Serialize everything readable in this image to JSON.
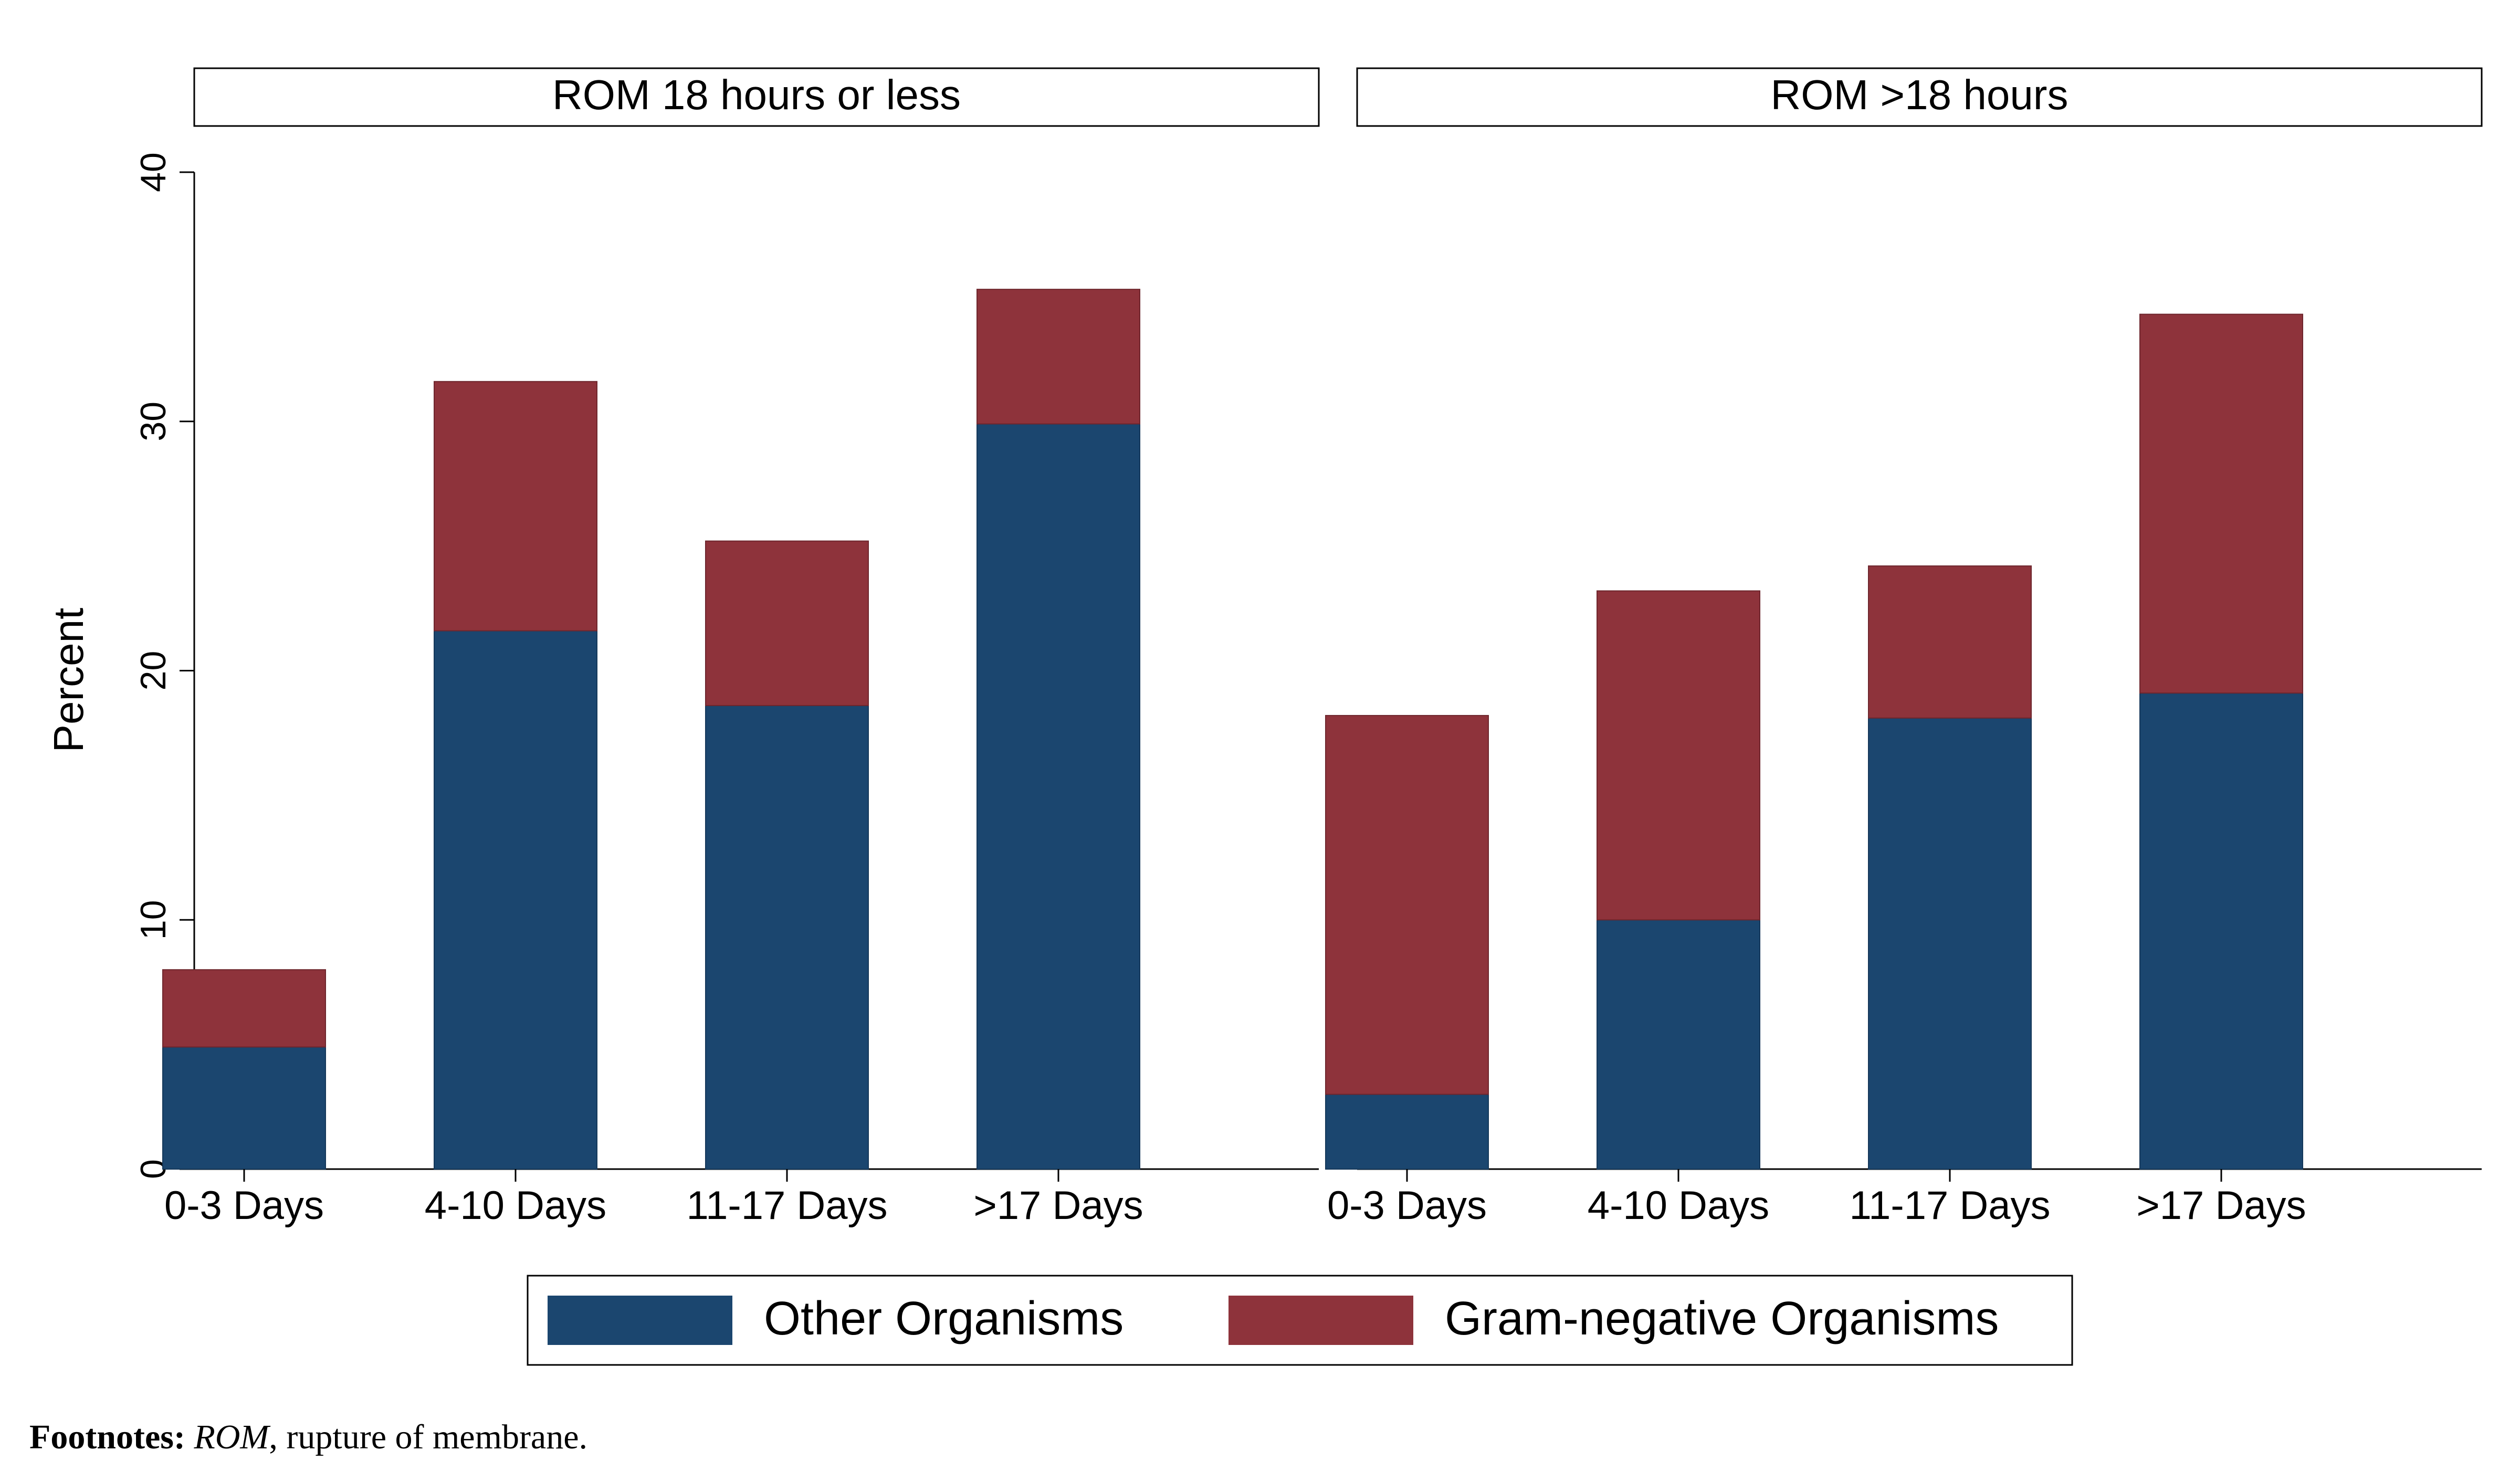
{
  "chart_data": {
    "type": "bar",
    "stacked": true,
    "ylabel": "Percent",
    "ylim": [
      0,
      40
    ],
    "yticks": [
      0,
      10,
      20,
      30,
      40
    ],
    "grid": false,
    "legend_position": "bottom",
    "categories": [
      "0-3 Days",
      "4-10 Days",
      "11-17 Days",
      ">17 Days"
    ],
    "series": [
      {
        "name": "Other Organisms",
        "color": "#1b466f"
      },
      {
        "name": "Gram-negative Organisms",
        "color": "#8e333b"
      }
    ],
    "panels": [
      {
        "title": "ROM 18 hours or less",
        "values": {
          "Other Organisms": [
            4.9,
            21.6,
            18.6,
            29.9
          ],
          "Gram-negative Organisms": [
            3.1,
            10.0,
            6.6,
            5.4
          ]
        }
      },
      {
        "title": "ROM >18 hours",
        "values": {
          "Other Organisms": [
            3.0,
            10.0,
            18.1,
            19.1
          ],
          "Gram-negative Organisms": [
            15.2,
            13.2,
            6.1,
            15.2
          ]
        }
      }
    ]
  },
  "footnote": {
    "label": "Footnotes:",
    "abbr": "ROM",
    "text": ", rupture of membrane."
  }
}
